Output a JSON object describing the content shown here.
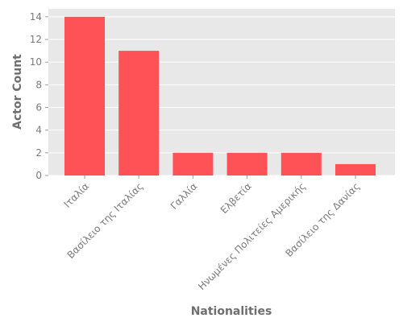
{
  "chart_data": {
    "type": "bar",
    "categories": [
      "Ιταλία",
      "Βασίλειο της Ιταλίας",
      "Γαλλία",
      "Ελβετία",
      "Ηνωμένες Πολιτείες Αμερικής",
      "Βασίλειο της Δανίας"
    ],
    "values": [
      14,
      11,
      2,
      2,
      2,
      1
    ],
    "xlabel": "Nationalities",
    "ylabel": "Actor Count",
    "ylim": [
      0,
      14.7
    ],
    "yticks": [
      0,
      2,
      4,
      6,
      8,
      10,
      12,
      14
    ],
    "grid": true,
    "colors": {
      "bar": "#ff5257",
      "panel": "#e8e8e8",
      "grid": "#ffffff",
      "text": "#7a7a7a"
    }
  }
}
